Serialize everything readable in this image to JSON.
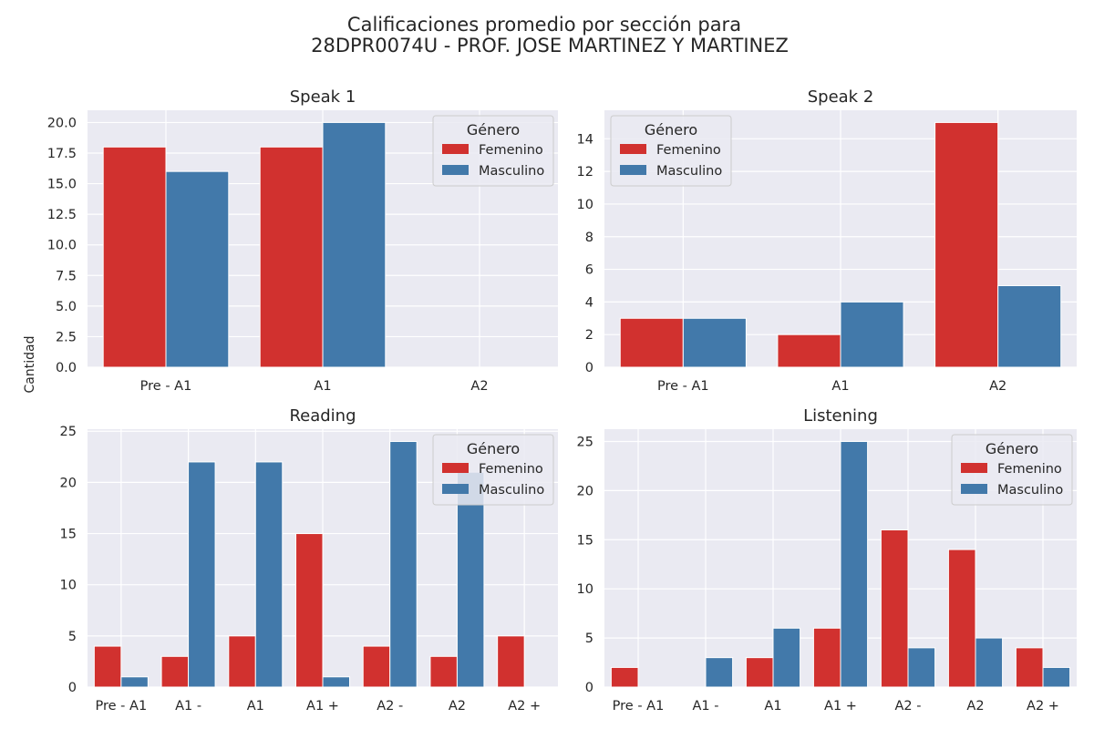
{
  "figure": {
    "suptitle_line1": "Calificaciones promedio por sección para",
    "suptitle_line2": "28DPR0074U - PROF. JOSE MARTINEZ Y MARTINEZ",
    "ylabel": "Cantidad"
  },
  "colors": {
    "Femenino": "#d1312f",
    "Masculino": "#4279aa",
    "plot_bg": "#eaeaf2",
    "grid": "#ffffff"
  },
  "chart_data": [
    {
      "type": "bar",
      "title": "Speak 1",
      "categories": [
        "Pre - A1",
        "A1",
        "A2"
      ],
      "series": [
        {
          "name": "Femenino",
          "values": [
            18,
            18,
            0
          ]
        },
        {
          "name": "Masculino",
          "values": [
            16,
            20,
            0
          ]
        }
      ],
      "ylim": [
        0,
        21
      ],
      "yticks": [
        0,
        2.5,
        5,
        7.5,
        10,
        12.5,
        15,
        17.5,
        20
      ],
      "ytick_labels": [
        "0.0",
        "2.5",
        "5.0",
        "7.5",
        "10.0",
        "12.5",
        "15.0",
        "17.5",
        "20.0"
      ],
      "legend": {
        "title": "Género",
        "position": "upper right"
      },
      "grid": true
    },
    {
      "type": "bar",
      "title": "Speak 2",
      "categories": [
        "Pre - A1",
        "A1",
        "A2"
      ],
      "series": [
        {
          "name": "Femenino",
          "values": [
            3,
            2,
            15
          ]
        },
        {
          "name": "Masculino",
          "values": [
            3,
            4,
            5
          ]
        }
      ],
      "ylim": [
        0,
        15.75
      ],
      "yticks": [
        0,
        2,
        4,
        6,
        8,
        10,
        12,
        14
      ],
      "ytick_labels": [
        "0",
        "2",
        "4",
        "6",
        "8",
        "10",
        "12",
        "14"
      ],
      "legend": {
        "title": "Género",
        "position": "upper left"
      },
      "grid": true
    },
    {
      "type": "bar",
      "title": "Reading",
      "categories": [
        "Pre - A1",
        "A1 -",
        "A1",
        "A1 +",
        "A2 -",
        "A2",
        "A2 +"
      ],
      "series": [
        {
          "name": "Femenino",
          "values": [
            4,
            3,
            5,
            15,
            4,
            3,
            5
          ]
        },
        {
          "name": "Masculino",
          "values": [
            1,
            22,
            22,
            1,
            24,
            21,
            0
          ]
        }
      ],
      "ylim": [
        0,
        25.2
      ],
      "yticks": [
        0,
        5,
        10,
        15,
        20,
        25
      ],
      "ytick_labels": [
        "0",
        "5",
        "10",
        "15",
        "20",
        "25"
      ],
      "legend": {
        "title": "Género",
        "position": "upper right"
      },
      "grid": true
    },
    {
      "type": "bar",
      "title": "Listening",
      "categories": [
        "Pre - A1",
        "A1 -",
        "A1",
        "A1 +",
        "A2 -",
        "A2",
        "A2 +"
      ],
      "series": [
        {
          "name": "Femenino",
          "values": [
            2,
            0,
            3,
            6,
            16,
            14,
            4
          ]
        },
        {
          "name": "Masculino",
          "values": [
            0,
            3,
            6,
            25,
            4,
            5,
            2
          ]
        }
      ],
      "ylim": [
        0,
        26.25
      ],
      "yticks": [
        0,
        5,
        10,
        15,
        20,
        25
      ],
      "ytick_labels": [
        "0",
        "5",
        "10",
        "15",
        "20",
        "25"
      ],
      "legend": {
        "title": "Género",
        "position": "upper right"
      },
      "grid": true
    }
  ]
}
